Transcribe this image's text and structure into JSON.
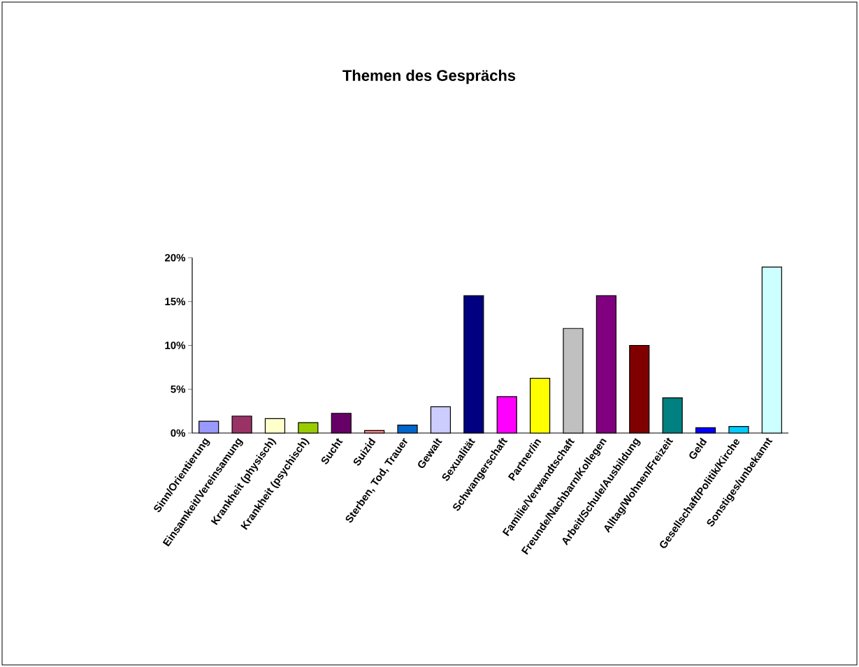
{
  "chart_data": {
    "type": "bar",
    "title": "Themen des Gesprächs",
    "categories": [
      "Sinn/Orientierung",
      "Einsamkeit/Vereinsamung",
      "Krankheit (physisch)",
      "Krankheit (psychisch)",
      "Sucht",
      "Suizid",
      "Sterben, Tod, Trauer",
      "Gewalt",
      "Sexualität",
      "Schwangerschaft",
      "Partner/in",
      "Familie/Verwandtschaft",
      "Freunde/Nachbarn/Kollegen",
      "Arbeit/Schule/Ausbildung",
      "Alltag/Wohnen/Freizeit",
      "Geld",
      "Gesellschaft/Politik/Kirche",
      "Sonstiges/unbekannt"
    ],
    "values": [
      1.35,
      1.93,
      1.64,
      1.19,
      2.25,
      0.29,
      0.9,
      2.99,
      15.66,
      4.15,
      6.24,
      11.93,
      15.66,
      10.0,
      4.02,
      0.61,
      0.74,
      18.94
    ],
    "colors": [
      "#9999ff",
      "#993366",
      "#ffffcc",
      "#99cc00",
      "#660066",
      "#ff8080",
      "#0066cc",
      "#ccccff",
      "#000080",
      "#ff00ff",
      "#ffff00",
      "#c0c0c0",
      "#800080",
      "#800000",
      "#008080",
      "#0000ff",
      "#00ccff",
      "#ccffff"
    ],
    "ylim": [
      0,
      20
    ],
    "yticks": [
      {
        "value": 0,
        "label": "0%"
      },
      {
        "value": 5,
        "label": "5%"
      },
      {
        "value": 10,
        "label": "10%"
      },
      {
        "value": 15,
        "label": "15%"
      },
      {
        "value": 20,
        "label": "20%"
      }
    ]
  }
}
